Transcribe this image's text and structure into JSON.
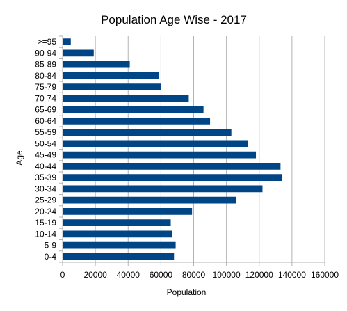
{
  "chart_data": {
    "type": "bar",
    "orientation": "horizontal",
    "title": "Population Age Wise - 2017",
    "xlabel": "Population",
    "ylabel": "Age",
    "xlim": [
      0,
      160000
    ],
    "x_ticks": [
      "0",
      "20000",
      "40000",
      "60000",
      "80000",
      "100000",
      "120000",
      "140000",
      "160000"
    ],
    "grid": true,
    "legend": "none",
    "bar_color": "#004586",
    "categories": [
      "0-4",
      "5-9",
      "10-14",
      "15-19",
      "20-24",
      "25-29",
      "30-34",
      "35-39",
      "40-44",
      "45-49",
      "50-54",
      "55-59",
      "60-64",
      "65-69",
      "70-74",
      "75-79",
      "80-84",
      "85-89",
      "90-94",
      ">=95"
    ],
    "values": [
      68000,
      69000,
      67000,
      66000,
      79000,
      106000,
      122000,
      134000,
      133000,
      118000,
      113000,
      103000,
      90000,
      86000,
      77000,
      60000,
      59000,
      41000,
      19000,
      5000
    ]
  }
}
